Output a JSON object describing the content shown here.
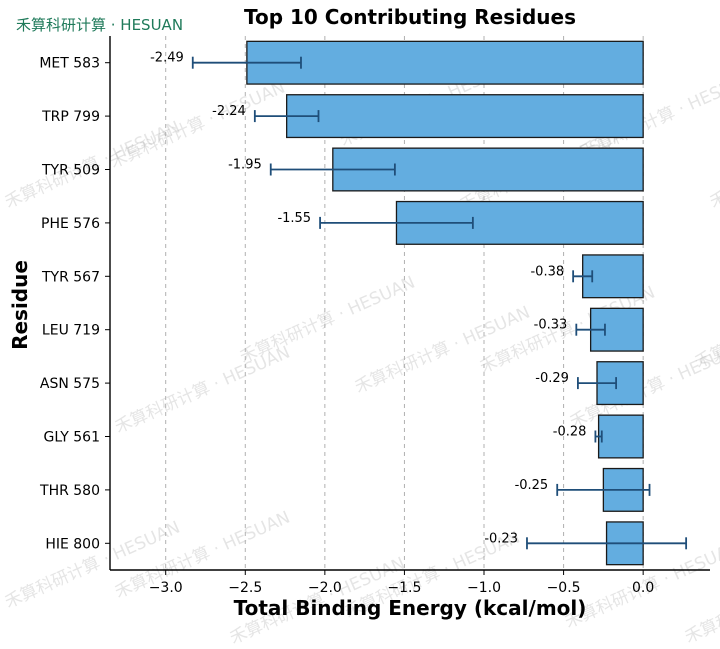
{
  "watermark": {
    "brand": "禾算科研计算 · HESUAN",
    "tile": "禾算科研计算 · HESUAN"
  },
  "chart_data": {
    "type": "bar",
    "orientation": "horizontal",
    "title": "Top 10 Contributing Residues",
    "xlabel": "Total Binding Energy (kcal/mol)",
    "ylabel": "Residue",
    "categories": [
      "MET 583",
      "TRP 799",
      "TYR 509",
      "PHE 576",
      "TYR 567",
      "LEU 719",
      "ASN 575",
      "GLY 561",
      "THR 580",
      "HIE 800"
    ],
    "values": [
      -2.49,
      -2.24,
      -1.95,
      -1.55,
      -0.38,
      -0.33,
      -0.29,
      -0.28,
      -0.25,
      -0.23
    ],
    "value_labels": [
      "-2.49",
      "-2.24",
      "-1.95",
      "-1.55",
      "-0.38",
      "-0.33",
      "-0.29",
      "-0.28",
      "-0.25",
      "-0.23"
    ],
    "errors": [
      0.34,
      0.2,
      0.39,
      0.48,
      0.06,
      0.09,
      0.12,
      0.02,
      0.29,
      0.5
    ],
    "xlim": [
      -3.35,
      0.42
    ],
    "xticks": [
      -3.0,
      -2.5,
      -2.0,
      -1.5,
      -1.0,
      -0.5,
      0.0
    ],
    "xtick_labels": [
      "−3.0",
      "−2.5",
      "−2.0",
      "−1.5",
      "−1.0",
      "−0.5",
      "0.0"
    ],
    "grid": "x-dashed",
    "bar_color": "#63ade0",
    "edge_color": "#1a1a1a",
    "error_color": "#1f4e79"
  }
}
